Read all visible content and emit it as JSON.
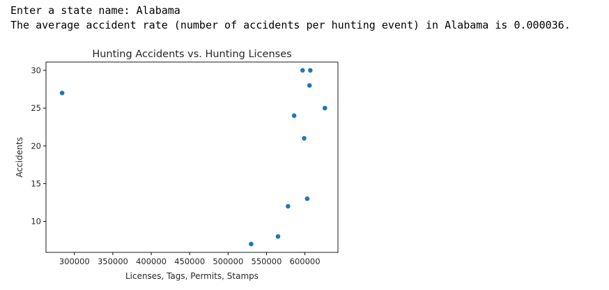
{
  "console": {
    "prompt_line": "Enter a state name: Alabama",
    "result_line": "The average accident rate (number of accidents per hunting event) in Alabama is 0.000036."
  },
  "chart_data": {
    "type": "scatter",
    "title": "Hunting Accidents vs. Hunting Licenses",
    "xlabel": "Licenses, Tags, Permits, Stamps",
    "ylabel": "Accidents",
    "xlim": [
      263000,
      643000
    ],
    "ylim": [
      5.9,
      31.1
    ],
    "x_ticks": [
      300000,
      350000,
      400000,
      450000,
      500000,
      550000,
      600000
    ],
    "y_ticks": [
      10,
      15,
      20,
      25,
      30
    ],
    "grid": false,
    "marker_color": "#1f77b4",
    "points": [
      {
        "x": 284000,
        "y": 27
      },
      {
        "x": 530000,
        "y": 7
      },
      {
        "x": 565000,
        "y": 8
      },
      {
        "x": 578000,
        "y": 12
      },
      {
        "x": 586000,
        "y": 24
      },
      {
        "x": 597000,
        "y": 30
      },
      {
        "x": 599000,
        "y": 21
      },
      {
        "x": 603000,
        "y": 13
      },
      {
        "x": 606000,
        "y": 28
      },
      {
        "x": 607000,
        "y": 30
      },
      {
        "x": 626000,
        "y": 25
      }
    ]
  }
}
